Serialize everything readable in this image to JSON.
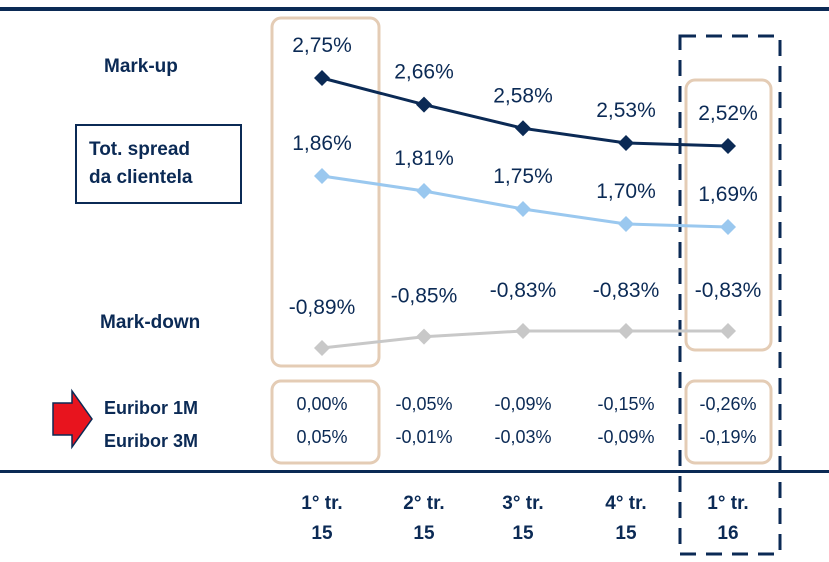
{
  "labels": {
    "markup": "Mark-up",
    "spread_line1": "Tot. spread",
    "spread_line2": "da clientela",
    "markdown": "Mark-down",
    "euribor_1m": "Euribor 1M",
    "euribor_3m": "Euribor 3M"
  },
  "colors": {
    "markup": "#0b2a55",
    "spread": "#9ac8ef",
    "markdown": "#c8c8c8",
    "highlight_box": "#e4ccb5",
    "arrow_fill": "#e8141e",
    "arrow_stroke": "#0b2a55"
  },
  "chart_data": {
    "type": "line",
    "categories": [
      {
        "line1": "1° tr.",
        "line2": "15"
      },
      {
        "line1": "2° tr.",
        "line2": "15"
      },
      {
        "line1": "3° tr.",
        "line2": "15"
      },
      {
        "line1": "4° tr.",
        "line2": "15"
      },
      {
        "line1": "1° tr.",
        "line2": "16"
      }
    ],
    "series": [
      {
        "name": "Mark-up",
        "values": [
          2.75,
          2.66,
          2.58,
          2.53,
          2.52
        ],
        "labels": [
          "2,75%",
          "2,66%",
          "2,58%",
          "2,53%",
          "2,52%"
        ]
      },
      {
        "name": "Tot. spread da clientela",
        "values": [
          1.86,
          1.81,
          1.75,
          1.7,
          1.69
        ],
        "labels": [
          "1,86%",
          "1,81%",
          "1,75%",
          "1,70%",
          "1,69%"
        ]
      },
      {
        "name": "Mark-down",
        "values": [
          -0.89,
          -0.85,
          -0.83,
          -0.83,
          -0.83
        ],
        "labels": [
          "-0,89%",
          "-0,85%",
          "-0,83%",
          "-0,83%",
          "-0,83%"
        ]
      }
    ],
    "table_rows": [
      {
        "name": "Euribor 1M",
        "values": [
          "0,00%",
          "-0,05%",
          "-0,09%",
          "-0,15%",
          "-0,26%"
        ]
      },
      {
        "name": "Euribor 3M",
        "values": [
          "0,05%",
          "-0,01%",
          "-0,03%",
          "-0,09%",
          "-0,19%"
        ]
      }
    ],
    "highlighted_categories": [
      0,
      4
    ],
    "dashed_highlight_category": 4,
    "grid": false,
    "legend": "left"
  }
}
